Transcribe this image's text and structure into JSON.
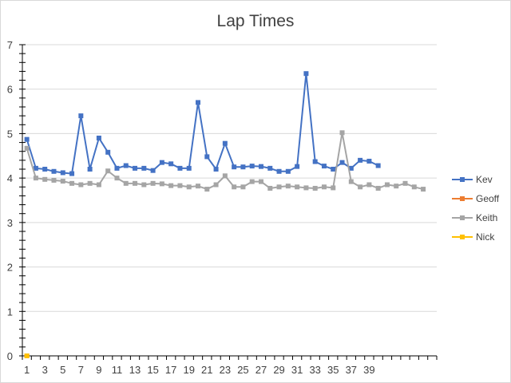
{
  "chart_data": {
    "type": "line",
    "title": "Lap Times",
    "xlabel": "",
    "ylabel": "",
    "ylim": [
      0,
      7
    ],
    "yticks": [
      0,
      1,
      2,
      3,
      4,
      5,
      6,
      7
    ],
    "xtick_labels": [
      "1",
      "3",
      "5",
      "7",
      "9",
      "11",
      "13",
      "15",
      "17",
      "19",
      "21",
      "23",
      "25",
      "27",
      "29",
      "31",
      "33",
      "35",
      "37",
      "39"
    ],
    "x_count": 46,
    "grid": true,
    "legend_position": "right",
    "series": [
      {
        "name": "Kev",
        "color": "#4472c4",
        "values": [
          4.87,
          4.22,
          4.2,
          4.15,
          4.12,
          4.1,
          5.4,
          4.2,
          4.9,
          4.58,
          4.22,
          4.28,
          4.22,
          4.22,
          4.17,
          4.35,
          4.32,
          4.22,
          4.22,
          5.7,
          4.48,
          4.2,
          4.78,
          4.25,
          4.25,
          4.27,
          4.26,
          4.22,
          4.15,
          4.15,
          4.26,
          6.35,
          4.37,
          4.27,
          4.2,
          4.35,
          4.22,
          4.4,
          4.38,
          4.28
        ]
      },
      {
        "name": "Geoff",
        "color": "#ed7d31",
        "values": [
          0.0
        ]
      },
      {
        "name": "Keith",
        "color": "#a5a5a5",
        "values": [
          4.67,
          4.0,
          3.97,
          3.95,
          3.93,
          3.88,
          3.85,
          3.88,
          3.85,
          4.16,
          4.0,
          3.88,
          3.88,
          3.85,
          3.88,
          3.87,
          3.83,
          3.83,
          3.8,
          3.82,
          3.75,
          3.85,
          4.05,
          3.8,
          3.8,
          3.92,
          3.92,
          3.77,
          3.8,
          3.82,
          3.8,
          3.78,
          3.77,
          3.8,
          3.78,
          5.02,
          3.92,
          3.8,
          3.85,
          3.77,
          3.85,
          3.82,
          3.88,
          3.8,
          3.75
        ]
      },
      {
        "name": "Nick",
        "color": "#ffc000",
        "values": [
          0.0
        ]
      }
    ]
  }
}
